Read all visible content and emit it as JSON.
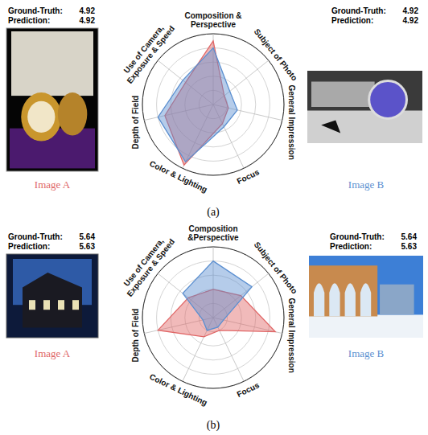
{
  "chart_data": [
    {
      "type": "radar",
      "caption": "(a)",
      "categories": [
        "Composition & Perspective",
        "Subject of Photo",
        "General Impression",
        "Focus",
        "Color & Lighting",
        "Depth of Field",
        "Use of Camera, Exposure & Speed"
      ],
      "ylim": [
        0,
        1
      ],
      "yticks": [
        0.2,
        0.4,
        0.6,
        0.8,
        1
      ],
      "grid": true,
      "tick_labels": false,
      "score_labels": [
        "Ground-Truth:",
        "Prediction:"
      ],
      "series": [
        {
          "name": "Image A",
          "color": "#e06666",
          "values": [
            0.9,
            0.2,
            0.22,
            0.3,
            0.95,
            0.7,
            0.5
          ],
          "ground_truth": 4.92,
          "prediction": 4.92
        },
        {
          "name": "Image B",
          "color": "#5b8fd0",
          "values": [
            0.8,
            0.3,
            0.35,
            0.35,
            0.9,
            0.8,
            0.55
          ],
          "ground_truth": 4.92,
          "prediction": 4.92
        }
      ]
    },
    {
      "type": "radar",
      "caption": "(b)",
      "categories": [
        "Composition &Perspective",
        "Subject of Photo",
        "General Impression",
        "Focus",
        "Color & Lighting",
        "Depth of Field",
        "Use of Camera, Exposure & Speed"
      ],
      "ylim": [
        0,
        1
      ],
      "yticks": [
        0.2,
        0.4,
        0.6,
        0.8,
        1
      ],
      "grid": true,
      "tick_labels": false,
      "score_labels": [
        "Ground-Truth:",
        "Prediction:"
      ],
      "series": [
        {
          "name": "Image A",
          "color": "#e06666",
          "values": [
            0.4,
            0.5,
            0.9,
            0.2,
            0.3,
            0.8,
            0.45
          ],
          "ground_truth": 5.64,
          "prediction": 5.63
        },
        {
          "name": "Image B",
          "color": "#5b8fd0",
          "values": [
            0.8,
            0.7,
            0.15,
            0.15,
            0.2,
            0.15,
            0.55
          ],
          "ground_truth": 5.64,
          "prediction": 5.63
        }
      ]
    }
  ]
}
